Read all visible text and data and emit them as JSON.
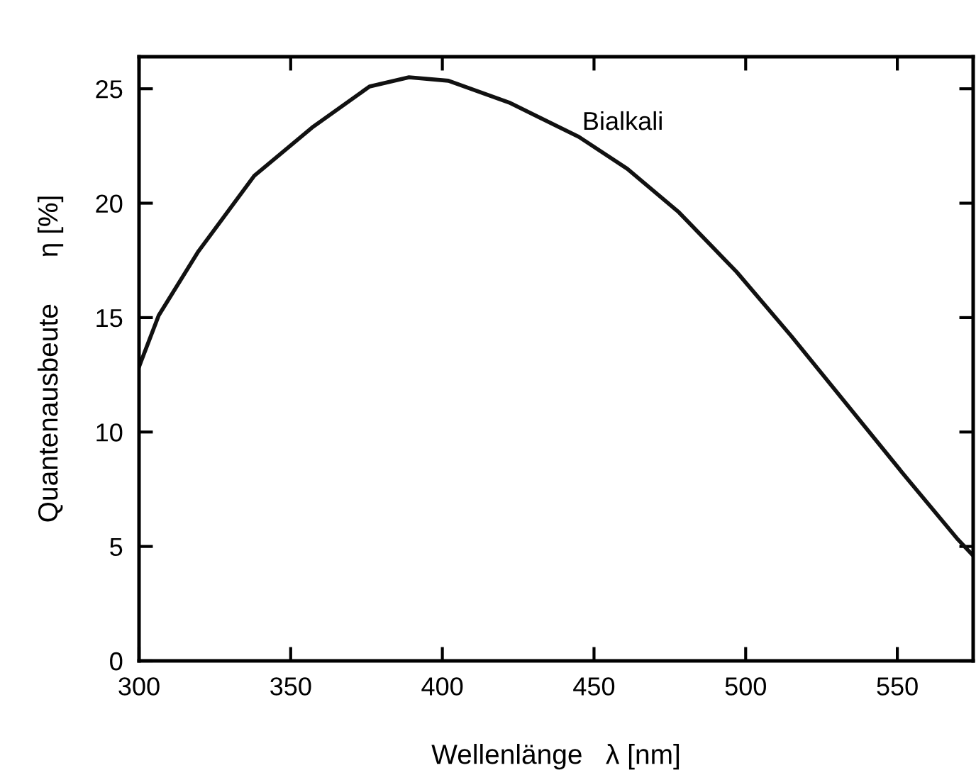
{
  "chart_data": {
    "type": "line",
    "xlabel": "Wellenlänge   λ [nm]",
    "ylabel": "Quantenausbeute      η [%]",
    "x": [
      300,
      306.5,
      319.6,
      338,
      357,
      376,
      389,
      402,
      422,
      445,
      461,
      478,
      497,
      515,
      534,
      553,
      570,
      575
    ],
    "series": [
      {
        "color": "#111111",
        "values": [
          12.85,
          15.1,
          17.9,
          21.2,
          23.3,
          25.1,
          25.5,
          25.35,
          24.4,
          22.9,
          21.5,
          19.6,
          17.0,
          14.2,
          11.1,
          8.0,
          5.3,
          4.6
        ]
      }
    ],
    "xlim": [
      300,
      575
    ],
    "ylim": [
      0,
      26.4
    ],
    "xticks": [
      300,
      350,
      400,
      450,
      500,
      550
    ],
    "yticks": [
      0,
      5,
      10,
      15,
      20,
      25
    ],
    "annotations": [
      "Bialkali"
    ],
    "grid": false,
    "legend": false,
    "marker": "none",
    "line_style": "solid"
  }
}
